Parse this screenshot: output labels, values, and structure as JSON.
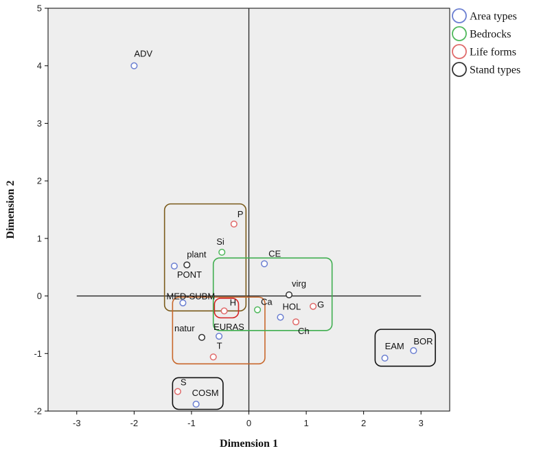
{
  "chart_data": {
    "type": "scatter",
    "title": "",
    "xlabel": "Dimension 1",
    "ylabel": "Dimension 2",
    "xlim": [
      -3.5,
      3.5
    ],
    "ylim": [
      -2,
      5
    ],
    "xticks": [
      -3,
      -2,
      -1,
      0,
      1,
      2,
      3
    ],
    "yticks": [
      -2,
      -1,
      0,
      1,
      2,
      3,
      4,
      5
    ],
    "grid": false,
    "legend": "right",
    "series": [
      {
        "name": "Area types",
        "color": "#6b7fd1",
        "points": [
          {
            "label": "ADV",
            "x": -2.0,
            "y": 4.0
          },
          {
            "label": "PONT",
            "x": -1.3,
            "y": 0.52
          },
          {
            "label": "MED-SUBM",
            "x": -1.15,
            "y": -0.12
          },
          {
            "label": "EURAS",
            "x": -0.52,
            "y": -0.7
          },
          {
            "label": "CE",
            "x": 0.27,
            "y": 0.56
          },
          {
            "label": "HOL",
            "x": 0.55,
            "y": -0.37
          },
          {
            "label": "EAM",
            "x": 2.37,
            "y": -1.08
          },
          {
            "label": "BOR",
            "x": 2.87,
            "y": -0.95
          },
          {
            "label": "COSM",
            "x": -0.92,
            "y": -1.88
          }
        ]
      },
      {
        "name": "Bedrocks",
        "color": "#4fb85b",
        "points": [
          {
            "label": "Si",
            "x": -0.47,
            "y": 0.76
          },
          {
            "label": "Ca",
            "x": 0.15,
            "y": -0.24
          }
        ]
      },
      {
        "name": "Life forms",
        "color": "#e06a6a",
        "points": [
          {
            "label": "P",
            "x": -0.26,
            "y": 1.25
          },
          {
            "label": "H",
            "x": -0.43,
            "y": -0.26
          },
          {
            "label": "T",
            "x": -0.62,
            "y": -1.06
          },
          {
            "label": "Ch",
            "x": 0.82,
            "y": -0.45
          },
          {
            "label": "G",
            "x": 1.12,
            "y": -0.18
          },
          {
            "label": "S",
            "x": -1.24,
            "y": -1.66
          }
        ]
      },
      {
        "name": "Stand types",
        "color": "#333333",
        "points": [
          {
            "label": "plant",
            "x": -1.08,
            "y": 0.54
          },
          {
            "label": "natur",
            "x": -0.82,
            "y": -0.72
          },
          {
            "label": "virg",
            "x": 0.7,
            "y": 0.02
          }
        ]
      }
    ],
    "annotations": {
      "groups": [
        {
          "x0": -1.47,
          "x1": -0.05,
          "y0": -0.26,
          "y1": 1.6,
          "color": "#7a5a1a"
        },
        {
          "x0": -1.33,
          "x1": 0.28,
          "y0": -1.18,
          "y1": -0.02,
          "color": "#c8672b"
        },
        {
          "x0": -0.6,
          "x1": -0.18,
          "y0": -0.38,
          "y1": -0.04,
          "color": "#d42424"
        },
        {
          "x0": -0.62,
          "x1": 1.45,
          "y0": -0.6,
          "y1": 0.66,
          "color": "#3fae4f"
        },
        {
          "x0": 2.2,
          "x1": 3.25,
          "y0": -1.22,
          "y1": -0.58,
          "color": "#111111"
        },
        {
          "x0": -1.33,
          "x1": -0.45,
          "y0": -1.97,
          "y1": -1.42,
          "color": "#111111"
        }
      ]
    }
  }
}
